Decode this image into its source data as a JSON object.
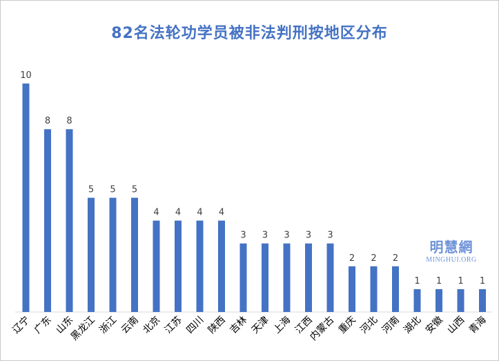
{
  "title": "82名法轮功学员被非法判刑按地区分布",
  "watermark": {
    "cn": "明慧網",
    "en": "MINGHUI.ORG"
  },
  "colors": {
    "bar": "#4472c4",
    "title": "#4472c4",
    "watermark": "#6f93d8"
  },
  "chart_data": {
    "type": "bar",
    "title": "82名法轮功学员被非法判刑按地区分布",
    "xlabel": "",
    "ylabel": "",
    "ylim": [
      0,
      10
    ],
    "grid": false,
    "legend": "none",
    "categories": [
      "辽宁",
      "广东",
      "山东",
      "黑龙江",
      "浙江",
      "云南",
      "北京",
      "江苏",
      "四川",
      "陕西",
      "吉林",
      "天津",
      "上海",
      "江西",
      "内蒙古",
      "重庆",
      "河北",
      "河南",
      "湖北",
      "安徽",
      "山西",
      "青海"
    ],
    "values": [
      10,
      8,
      8,
      5,
      5,
      5,
      4,
      4,
      4,
      4,
      3,
      3,
      3,
      3,
      3,
      2,
      2,
      2,
      1,
      1,
      1,
      1
    ]
  }
}
